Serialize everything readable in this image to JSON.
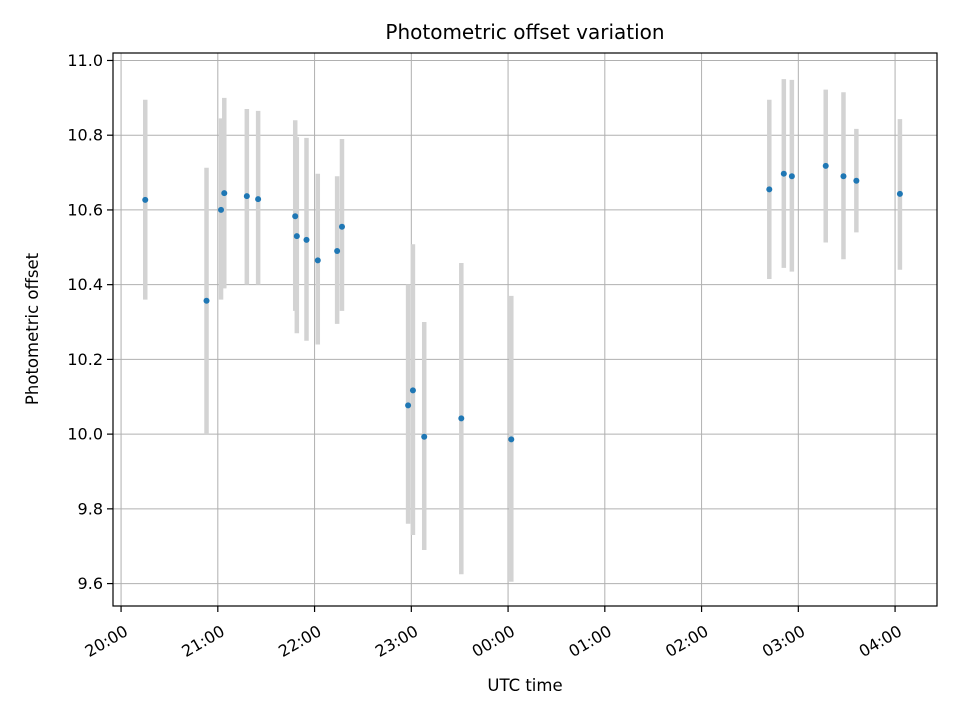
{
  "chart_data": {
    "type": "scatter",
    "title": "Photometric offset variation",
    "xlabel": "UTC time",
    "ylabel": "Photometric offset",
    "x_tick_labels": [
      "20:00",
      "21:00",
      "22:00",
      "23:00",
      "00:00",
      "01:00",
      "02:00",
      "03:00",
      "04:00"
    ],
    "y_tick_labels": [
      "9.6",
      "9.8",
      "10.0",
      "10.2",
      "10.4",
      "10.6",
      "10.8",
      "11.0"
    ],
    "xlim": [
      "19:55",
      "04:26"
    ],
    "ylim": [
      9.54,
      11.02
    ],
    "grid": true,
    "colors": {
      "point": "#1f77b4",
      "errorbar": "#d3d3d3",
      "grid": "#b0b0b0"
    },
    "points": [
      {
        "x": "20:15",
        "y": 10.627,
        "ylo": 10.36,
        "yhi": 10.895
      },
      {
        "x": "20:53",
        "y": 10.357,
        "ylo": 10.0,
        "yhi": 10.713
      },
      {
        "x": "21:02",
        "y": 10.6,
        "ylo": 10.36,
        "yhi": 10.845
      },
      {
        "x": "21:04",
        "y": 10.645,
        "ylo": 10.39,
        "yhi": 10.9
      },
      {
        "x": "21:18",
        "y": 10.637,
        "ylo": 10.4,
        "yhi": 10.87
      },
      {
        "x": "21:25",
        "y": 10.629,
        "ylo": 10.4,
        "yhi": 10.865
      },
      {
        "x": "21:48",
        "y": 10.583,
        "ylo": 10.33,
        "yhi": 10.84
      },
      {
        "x": "21:49",
        "y": 10.53,
        "ylo": 10.27,
        "yhi": 10.795
      },
      {
        "x": "21:55",
        "y": 10.52,
        "ylo": 10.25,
        "yhi": 10.793
      },
      {
        "x": "22:02",
        "y": 10.465,
        "ylo": 10.24,
        "yhi": 10.697
      },
      {
        "x": "22:14",
        "y": 10.49,
        "ylo": 10.295,
        "yhi": 10.69
      },
      {
        "x": "22:17",
        "y": 10.555,
        "ylo": 10.33,
        "yhi": 10.79
      },
      {
        "x": "22:58",
        "y": 10.077,
        "ylo": 9.76,
        "yhi": 10.4
      },
      {
        "x": "23:01",
        "y": 10.117,
        "ylo": 9.73,
        "yhi": 10.508
      },
      {
        "x": "23:08",
        "y": 9.993,
        "ylo": 9.69,
        "yhi": 10.3
      },
      {
        "x": "23:31",
        "y": 10.042,
        "ylo": 9.625,
        "yhi": 10.458
      },
      {
        "x": "00:02",
        "y": 9.986,
        "ylo": 9.605,
        "yhi": 10.37
      },
      {
        "x": "02:42",
        "y": 10.655,
        "ylo": 10.415,
        "yhi": 10.895
      },
      {
        "x": "02:51",
        "y": 10.697,
        "ylo": 10.445,
        "yhi": 10.95
      },
      {
        "x": "02:56",
        "y": 10.69,
        "ylo": 10.435,
        "yhi": 10.948
      },
      {
        "x": "03:17",
        "y": 10.718,
        "ylo": 10.513,
        "yhi": 10.922
      },
      {
        "x": "03:28",
        "y": 10.69,
        "ylo": 10.468,
        "yhi": 10.915
      },
      {
        "x": "03:36",
        "y": 10.678,
        "ylo": 10.54,
        "yhi": 10.817
      },
      {
        "x": "04:03",
        "y": 10.643,
        "ylo": 10.44,
        "yhi": 10.843
      }
    ]
  }
}
